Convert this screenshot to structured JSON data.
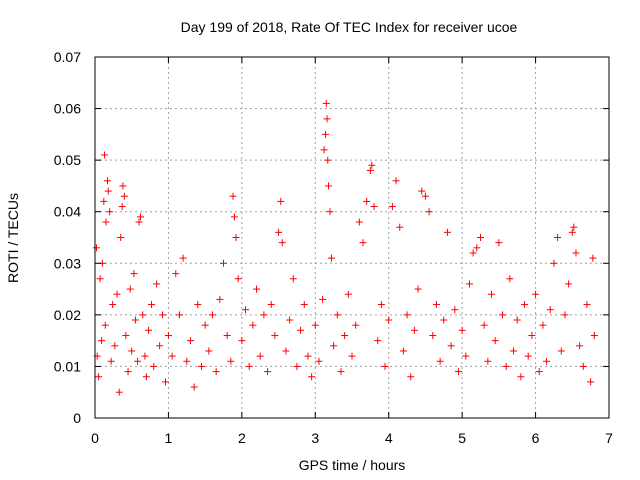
{
  "chart_data": {
    "type": "scatter",
    "title": "Day 199 of 2018, Rate Of TEC Index for receiver ucoe",
    "xlabel": "GPS time / hours",
    "ylabel": "ROTI / TECUs",
    "xlim": [
      0,
      7
    ],
    "ylim": [
      0,
      0.07
    ],
    "x_ticks": [
      "0",
      "1",
      "2",
      "3",
      "4",
      "5",
      "6",
      "7"
    ],
    "y_ticks": [
      "0",
      "0.01",
      "0.02",
      "0.03",
      "0.04",
      "0.05",
      "0.06",
      "0.07"
    ],
    "grid": true,
    "marker": "+",
    "marker_color": "#ff0000",
    "series": [
      {
        "name": "ROTI",
        "points": [
          [
            0.02,
            0.033
          ],
          [
            0.03,
            0.012
          ],
          [
            0.05,
            0.008
          ],
          [
            0.07,
            0.027
          ],
          [
            0.09,
            0.015
          ],
          [
            0.1,
            0.03
          ],
          [
            0.12,
            0.042
          ],
          [
            0.13,
            0.051
          ],
          [
            0.14,
            0.018
          ],
          [
            0.15,
            0.038
          ],
          [
            0.17,
            0.046
          ],
          [
            0.18,
            0.044
          ],
          [
            0.2,
            0.04
          ],
          [
            0.22,
            0.011
          ],
          [
            0.24,
            0.022
          ],
          [
            0.27,
            0.014
          ],
          [
            0.3,
            0.024
          ],
          [
            0.33,
            0.005
          ],
          [
            0.35,
            0.035
          ],
          [
            0.37,
            0.041
          ],
          [
            0.38,
            0.045
          ],
          [
            0.4,
            0.043
          ],
          [
            0.42,
            0.016
          ],
          [
            0.45,
            0.009
          ],
          [
            0.48,
            0.025
          ],
          [
            0.5,
            0.013
          ],
          [
            0.53,
            0.028
          ],
          [
            0.55,
            0.019
          ],
          [
            0.58,
            0.011
          ],
          [
            0.6,
            0.038
          ],
          [
            0.62,
            0.039
          ],
          [
            0.65,
            0.02
          ],
          [
            0.68,
            0.012
          ],
          [
            0.7,
            0.008
          ],
          [
            0.73,
            0.017
          ],
          [
            0.77,
            0.022
          ],
          [
            0.8,
            0.01
          ],
          [
            0.84,
            0.026
          ],
          [
            0.88,
            0.014
          ],
          [
            0.92,
            0.02
          ],
          [
            0.96,
            0.007
          ],
          [
            1.0,
            0.016
          ],
          [
            1.05,
            0.012
          ],
          [
            1.1,
            0.028
          ],
          [
            1.15,
            0.02
          ],
          [
            1.2,
            0.031
          ],
          [
            1.25,
            0.011
          ],
          [
            1.3,
            0.015
          ],
          [
            1.35,
            0.006
          ],
          [
            1.4,
            0.022
          ],
          [
            1.45,
            0.01
          ],
          [
            1.5,
            0.018
          ],
          [
            1.55,
            0.013
          ],
          [
            1.6,
            0.02
          ],
          [
            1.65,
            0.009
          ],
          [
            1.7,
            0.023
          ],
          [
            1.75,
            0.03
          ],
          [
            1.8,
            0.016
          ],
          [
            1.85,
            0.011
          ],
          [
            1.88,
            0.043
          ],
          [
            1.9,
            0.039
          ],
          [
            1.92,
            0.035
          ],
          [
            1.95,
            0.027
          ],
          [
            2.0,
            0.015
          ],
          [
            2.05,
            0.021
          ],
          [
            2.1,
            0.01
          ],
          [
            2.15,
            0.018
          ],
          [
            2.2,
            0.025
          ],
          [
            2.25,
            0.012
          ],
          [
            2.3,
            0.02
          ],
          [
            2.35,
            0.009
          ],
          [
            2.4,
            0.022
          ],
          [
            2.45,
            0.016
          ],
          [
            2.5,
            0.036
          ],
          [
            2.53,
            0.042
          ],
          [
            2.55,
            0.034
          ],
          [
            2.6,
            0.013
          ],
          [
            2.65,
            0.019
          ],
          [
            2.7,
            0.027
          ],
          [
            2.75,
            0.01
          ],
          [
            2.8,
            0.017
          ],
          [
            2.85,
            0.022
          ],
          [
            2.9,
            0.012
          ],
          [
            2.95,
            0.008
          ],
          [
            3.0,
            0.018
          ],
          [
            3.05,
            0.011
          ],
          [
            3.1,
            0.023
          ],
          [
            3.12,
            0.052
          ],
          [
            3.14,
            0.055
          ],
          [
            3.15,
            0.061
          ],
          [
            3.16,
            0.058
          ],
          [
            3.17,
            0.05
          ],
          [
            3.18,
            0.045
          ],
          [
            3.2,
            0.04
          ],
          [
            3.22,
            0.031
          ],
          [
            3.25,
            0.014
          ],
          [
            3.3,
            0.02
          ],
          [
            3.35,
            0.009
          ],
          [
            3.4,
            0.016
          ],
          [
            3.45,
            0.024
          ],
          [
            3.5,
            0.012
          ],
          [
            3.55,
            0.018
          ],
          [
            3.6,
            0.038
          ],
          [
            3.65,
            0.034
          ],
          [
            3.7,
            0.042
          ],
          [
            3.75,
            0.048
          ],
          [
            3.77,
            0.049
          ],
          [
            3.8,
            0.041
          ],
          [
            3.85,
            0.015
          ],
          [
            3.9,
            0.022
          ],
          [
            3.95,
            0.01
          ],
          [
            4.0,
            0.019
          ],
          [
            4.05,
            0.041
          ],
          [
            4.1,
            0.046
          ],
          [
            4.15,
            0.037
          ],
          [
            4.2,
            0.013
          ],
          [
            4.25,
            0.02
          ],
          [
            4.3,
            0.008
          ],
          [
            4.35,
            0.017
          ],
          [
            4.4,
            0.025
          ],
          [
            4.45,
            0.044
          ],
          [
            4.5,
            0.043
          ],
          [
            4.55,
            0.04
          ],
          [
            4.6,
            0.016
          ],
          [
            4.65,
            0.022
          ],
          [
            4.7,
            0.011
          ],
          [
            4.75,
            0.019
          ],
          [
            4.8,
            0.036
          ],
          [
            4.85,
            0.014
          ],
          [
            4.9,
            0.021
          ],
          [
            4.95,
            0.009
          ],
          [
            5.0,
            0.017
          ],
          [
            5.05,
            0.012
          ],
          [
            5.1,
            0.026
          ],
          [
            5.15,
            0.032
          ],
          [
            5.2,
            0.033
          ],
          [
            5.25,
            0.035
          ],
          [
            5.3,
            0.018
          ],
          [
            5.35,
            0.011
          ],
          [
            5.4,
            0.024
          ],
          [
            5.45,
            0.015
          ],
          [
            5.5,
            0.034
          ],
          [
            5.55,
            0.02
          ],
          [
            5.6,
            0.01
          ],
          [
            5.65,
            0.027
          ],
          [
            5.7,
            0.013
          ],
          [
            5.75,
            0.019
          ],
          [
            5.8,
            0.008
          ],
          [
            5.85,
            0.022
          ],
          [
            5.9,
            0.012
          ],
          [
            5.95,
            0.016
          ],
          [
            6.0,
            0.024
          ],
          [
            6.05,
            0.009
          ],
          [
            6.1,
            0.018
          ],
          [
            6.15,
            0.011
          ],
          [
            6.2,
            0.021
          ],
          [
            6.25,
            0.03
          ],
          [
            6.3,
            0.035
          ],
          [
            6.35,
            0.013
          ],
          [
            6.4,
            0.02
          ],
          [
            6.45,
            0.026
          ],
          [
            6.5,
            0.036
          ],
          [
            6.52,
            0.037
          ],
          [
            6.55,
            0.032
          ],
          [
            6.6,
            0.014
          ],
          [
            6.65,
            0.01
          ],
          [
            6.7,
            0.022
          ],
          [
            6.75,
            0.007
          ],
          [
            6.78,
            0.031
          ],
          [
            6.8,
            0.016
          ]
        ]
      }
    ]
  }
}
